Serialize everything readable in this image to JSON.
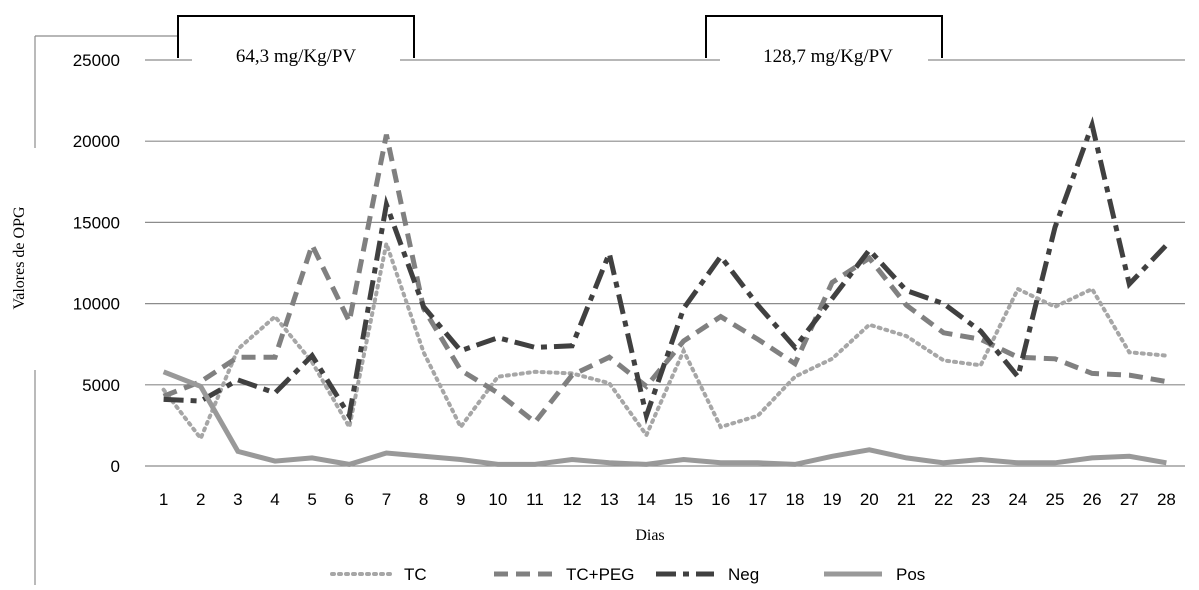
{
  "chart_data": {
    "type": "line",
    "xlabel": "Dias",
    "ylabel": "Valores de OPG",
    "ylim": [
      0,
      25000
    ],
    "yticks": [
      "0",
      "5000",
      "10000",
      "15000",
      "20000",
      "25000"
    ],
    "categories": [
      "1",
      "2",
      "3",
      "4",
      "5",
      "6",
      "7",
      "8",
      "9",
      "10",
      "11",
      "12",
      "13",
      "14",
      "15",
      "16",
      "17",
      "18",
      "19",
      "20",
      "21",
      "22",
      "23",
      "24",
      "25",
      "26",
      "27",
      "28"
    ],
    "grid": true,
    "legend_position": "bottom",
    "annotations": [
      {
        "label": "64,3 mg/Kg/PV",
        "from_day": 1,
        "to_day": 8
      },
      {
        "label": "128,7 mg/Kg/PV",
        "from_day": 16,
        "to_day": 22
      }
    ],
    "series": [
      {
        "name": "TC",
        "style": "dotted",
        "color": "#a6a6a6",
        "values": [
          4700,
          1700,
          7200,
          9200,
          6400,
          2400,
          13700,
          7000,
          2400,
          5500,
          5800,
          5700,
          5100,
          1900,
          7100,
          2400,
          3100,
          5500,
          6600,
          8700,
          8000,
          6500,
          6200,
          10900,
          9800,
          10900,
          7000,
          6800
        ]
      },
      {
        "name": "TC+PEG",
        "style": "dashed",
        "color": "#808080",
        "values": [
          4300,
          5200,
          6700,
          6700,
          13600,
          8900,
          20400,
          9700,
          5900,
          4500,
          2700,
          5600,
          6700,
          4900,
          7700,
          9200,
          7800,
          6300,
          11300,
          12800,
          9900,
          8200,
          7800,
          6700,
          6600,
          5700,
          5600,
          5200
        ]
      },
      {
        "name": "Neg",
        "style": "dashdot",
        "color": "#404040",
        "values": [
          4100,
          4000,
          5300,
          4500,
          6800,
          3100,
          16100,
          9800,
          7100,
          7900,
          7300,
          7400,
          13100,
          3100,
          9700,
          12900,
          9900,
          7300,
          10300,
          13300,
          10800,
          10000,
          8300,
          5500,
          14700,
          21000,
          11200,
          13600
        ]
      },
      {
        "name": "Pos",
        "style": "solid",
        "color": "#999999",
        "values": [
          5800,
          4900,
          900,
          300,
          500,
          100,
          800,
          600,
          400,
          100,
          100,
          400,
          200,
          100,
          400,
          200,
          200,
          100,
          600,
          1000,
          500,
          200,
          400,
          200,
          200,
          500,
          600,
          200
        ]
      }
    ]
  }
}
